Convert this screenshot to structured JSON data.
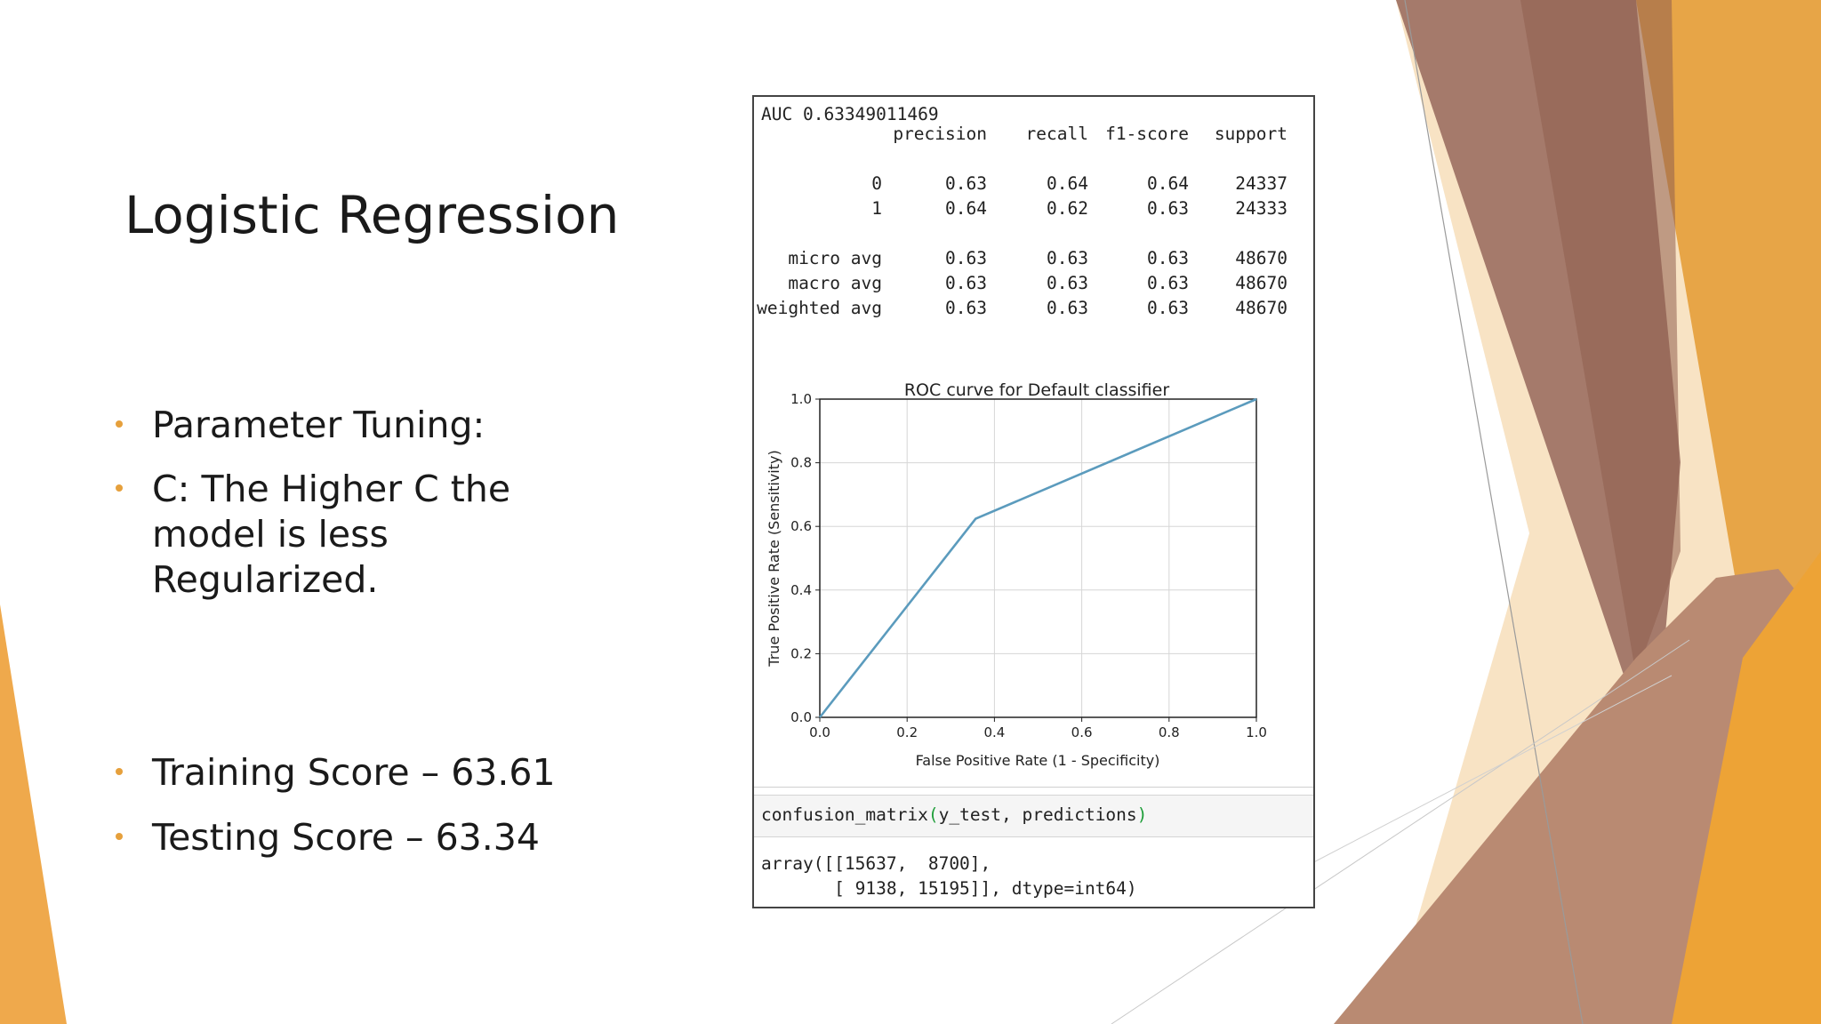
{
  "slide": {
    "title": "Logistic Regression",
    "bullets": [
      "Parameter Tuning:",
      "C: The Higher C the model is less Regularized.",
      "Training Score – 63.61",
      "Testing Score – 63.34"
    ],
    "accent_colors": [
      "#E6A03C",
      "#B0705A",
      "#F5D9A8"
    ]
  },
  "notebook": {
    "auc_line": "AUC 0.63349011469",
    "report_header": [
      "precision",
      "recall",
      "f1-score",
      "support"
    ],
    "report_rows": [
      {
        "label": "0",
        "precision": "0.63",
        "recall": "0.64",
        "f1": "0.64",
        "support": "24337"
      },
      {
        "label": "1",
        "precision": "0.64",
        "recall": "0.62",
        "f1": "0.63",
        "support": "24333"
      },
      {
        "label": "micro avg",
        "precision": "0.63",
        "recall": "0.63",
        "f1": "0.63",
        "support": "48670"
      },
      {
        "label": "macro avg",
        "precision": "0.63",
        "recall": "0.63",
        "f1": "0.63",
        "support": "48670"
      },
      {
        "label": "weighted avg",
        "precision": "0.63",
        "recall": "0.63",
        "f1": "0.63",
        "support": "48670"
      }
    ],
    "cm_code": {
      "fn": "confusion_matrix",
      "open": "(",
      "args": "y_test, predictions",
      "close": ")"
    },
    "cm_output": [
      "array([[15637,  8700],",
      "       [ 9138, 15195]], dtype=int64)"
    ]
  },
  "chart_data": {
    "type": "line",
    "title": "ROC curve for Default classifier",
    "xlabel": "False Positive Rate (1 - Specificity)",
    "ylabel": "True Positive Rate (Sensitivity)",
    "xlim": [
      0.0,
      1.0
    ],
    "ylim": [
      0.0,
      1.0
    ],
    "xticks": [
      "0.0",
      "0.2",
      "0.4",
      "0.6",
      "0.8",
      "1.0"
    ],
    "yticks": [
      "0.0",
      "0.2",
      "0.4",
      "0.6",
      "0.8",
      "1.0"
    ],
    "grid": true,
    "line_color": "#5b9bbd",
    "series": [
      {
        "x": [
          0.0,
          0.357,
          1.0
        ],
        "y": [
          0.0,
          0.624,
          1.0
        ]
      }
    ]
  }
}
